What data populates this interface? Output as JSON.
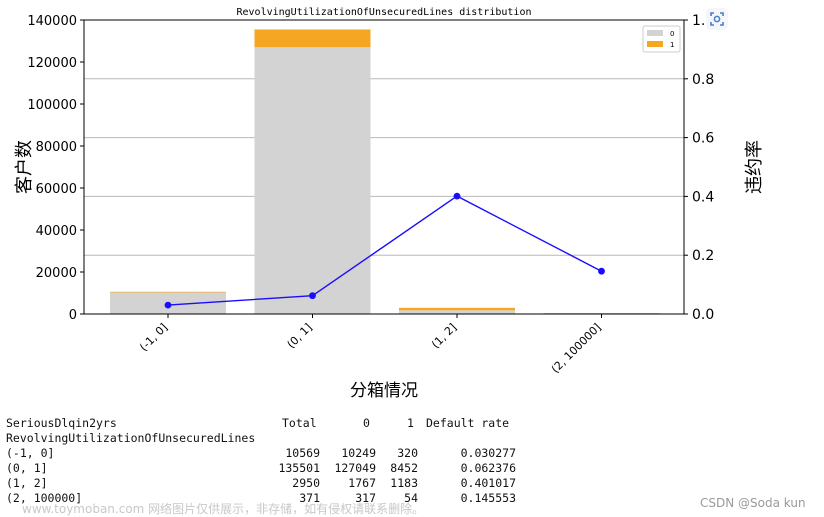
{
  "chart_data": {
    "type": "bar",
    "title": "RevolvingUtilizationOfUnsecuredLines distribution",
    "xlabel": "分箱情况",
    "ylabel": "客户数",
    "y2label": "违约率",
    "categories": [
      "(-1, 0]",
      "(0, 1]",
      "(1, 2]",
      "(2, 100000]"
    ],
    "series": [
      {
        "name": "0",
        "values": [
          10249,
          127049,
          1767,
          317
        ],
        "color": "#d3d3d3"
      },
      {
        "name": "1",
        "values": [
          320,
          8452,
          1183,
          54
        ],
        "color": "#f5a623"
      }
    ],
    "line_series": {
      "values": [
        0.030277,
        0.062376,
        0.401017,
        0.145553
      ],
      "color": "#1a0dff"
    },
    "ylim": [
      0,
      140000
    ],
    "yticks": [
      0,
      20000,
      40000,
      60000,
      80000,
      100000,
      120000,
      140000
    ],
    "y2lim": [
      0,
      1.0
    ],
    "y2ticks": [
      "0.0",
      "0.2",
      "0.4",
      "0.6",
      "0.8",
      "1.0"
    ],
    "y2tick_values": [
      0,
      0.2,
      0.4,
      0.6,
      0.8,
      1.0
    ],
    "legend_placement": "top-right",
    "grid": "horizontal, secondary axis"
  },
  "stats_table": {
    "header_label": "SeriousDlqin2yrs",
    "index_name": "RevolvingUtilizationOfUnsecuredLines",
    "columns": [
      "Total",
      "0",
      "1",
      "Default rate"
    ],
    "rows": [
      {
        "label": "(-1, 0]",
        "cells": [
          "10569",
          "10249",
          "320",
          "0.030277"
        ]
      },
      {
        "label": "(0, 1]",
        "cells": [
          "135501",
          "127049",
          "8452",
          "0.062376"
        ]
      },
      {
        "label": "(1, 2]",
        "cells": [
          "2950",
          "1767",
          "1183",
          "0.401017"
        ]
      },
      {
        "label": "(2, 100000]",
        "cells": [
          "371",
          "317",
          "54",
          "0.145553"
        ]
      }
    ]
  },
  "watermark": "www.toymoban.com 网络图片仅供展示，非存储，如有侵权请联系删除。",
  "credit": "CSDN @Soda kun"
}
